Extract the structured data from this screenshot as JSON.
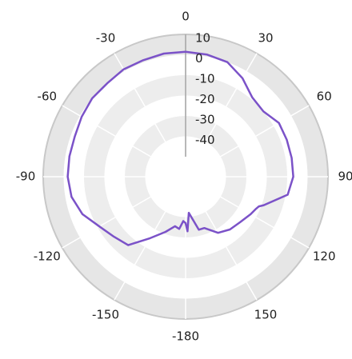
{
  "chart_data": {
    "type": "polar-line",
    "angle_labels": [
      "0",
      "30",
      "60",
      "90",
      "120",
      "150",
      "-180",
      "-150",
      "-120",
      "-90",
      "-60",
      "-30"
    ],
    "radial_tick_labels": [
      "10",
      "0",
      "-10",
      "-20",
      "-30",
      "-40"
    ],
    "radial_range": [
      -50,
      10
    ],
    "angle_direction": "clockwise",
    "zero_angle_position": "top",
    "grid": true,
    "series": [
      {
        "color": "#7b52c8",
        "points": [
          {
            "angle": 0,
            "value": 1.5
          },
          {
            "angle": 10,
            "value": 1.0
          },
          {
            "angle": 20,
            "value": 0
          },
          {
            "angle": 30,
            "value": -4
          },
          {
            "angle": 40,
            "value": -9
          },
          {
            "angle": 50,
            "value": -10
          },
          {
            "angle": 60,
            "value": -7
          },
          {
            "angle": 70,
            "value": -7
          },
          {
            "angle": 80,
            "value": -7
          },
          {
            "angle": 90,
            "value": -7
          },
          {
            "angle": 100,
            "value": -9
          },
          {
            "angle": 110,
            "value": -19
          },
          {
            "angle": 112,
            "value": -21
          },
          {
            "angle": 115,
            "value": -22
          },
          {
            "angle": 120,
            "value": -23
          },
          {
            "angle": 130,
            "value": -25
          },
          {
            "angle": 140,
            "value": -26
          },
          {
            "angle": 150,
            "value": -28
          },
          {
            "angle": 160,
            "value": -33
          },
          {
            "angle": 166,
            "value": -33
          },
          {
            "angle": 170,
            "value": -38
          },
          {
            "angle": 175,
            "value": -42
          },
          {
            "angle": 178,
            "value": -33
          },
          {
            "angle": 180,
            "value": -37
          },
          {
            "angle": -177,
            "value": -38
          },
          {
            "angle": -173,
            "value": -34
          },
          {
            "angle": -168,
            "value": -35
          },
          {
            "angle": -160,
            "value": -31
          },
          {
            "angle": -150,
            "value": -25
          },
          {
            "angle": -140,
            "value": -16
          },
          {
            "angle": -130,
            "value": -14
          },
          {
            "angle": -120,
            "value": -11
          },
          {
            "angle": -110,
            "value": -6
          },
          {
            "angle": -100,
            "value": -3
          },
          {
            "angle": -90,
            "value": -2
          },
          {
            "angle": -80,
            "value": -2
          },
          {
            "angle": -70,
            "value": -2
          },
          {
            "angle": -60,
            "value": -1
          },
          {
            "angle": -50,
            "value": 0
          },
          {
            "angle": -40,
            "value": 0
          },
          {
            "angle": -30,
            "value": 1
          },
          {
            "angle": -20,
            "value": 1
          },
          {
            "angle": -10,
            "value": 1.5
          }
        ]
      }
    ]
  }
}
